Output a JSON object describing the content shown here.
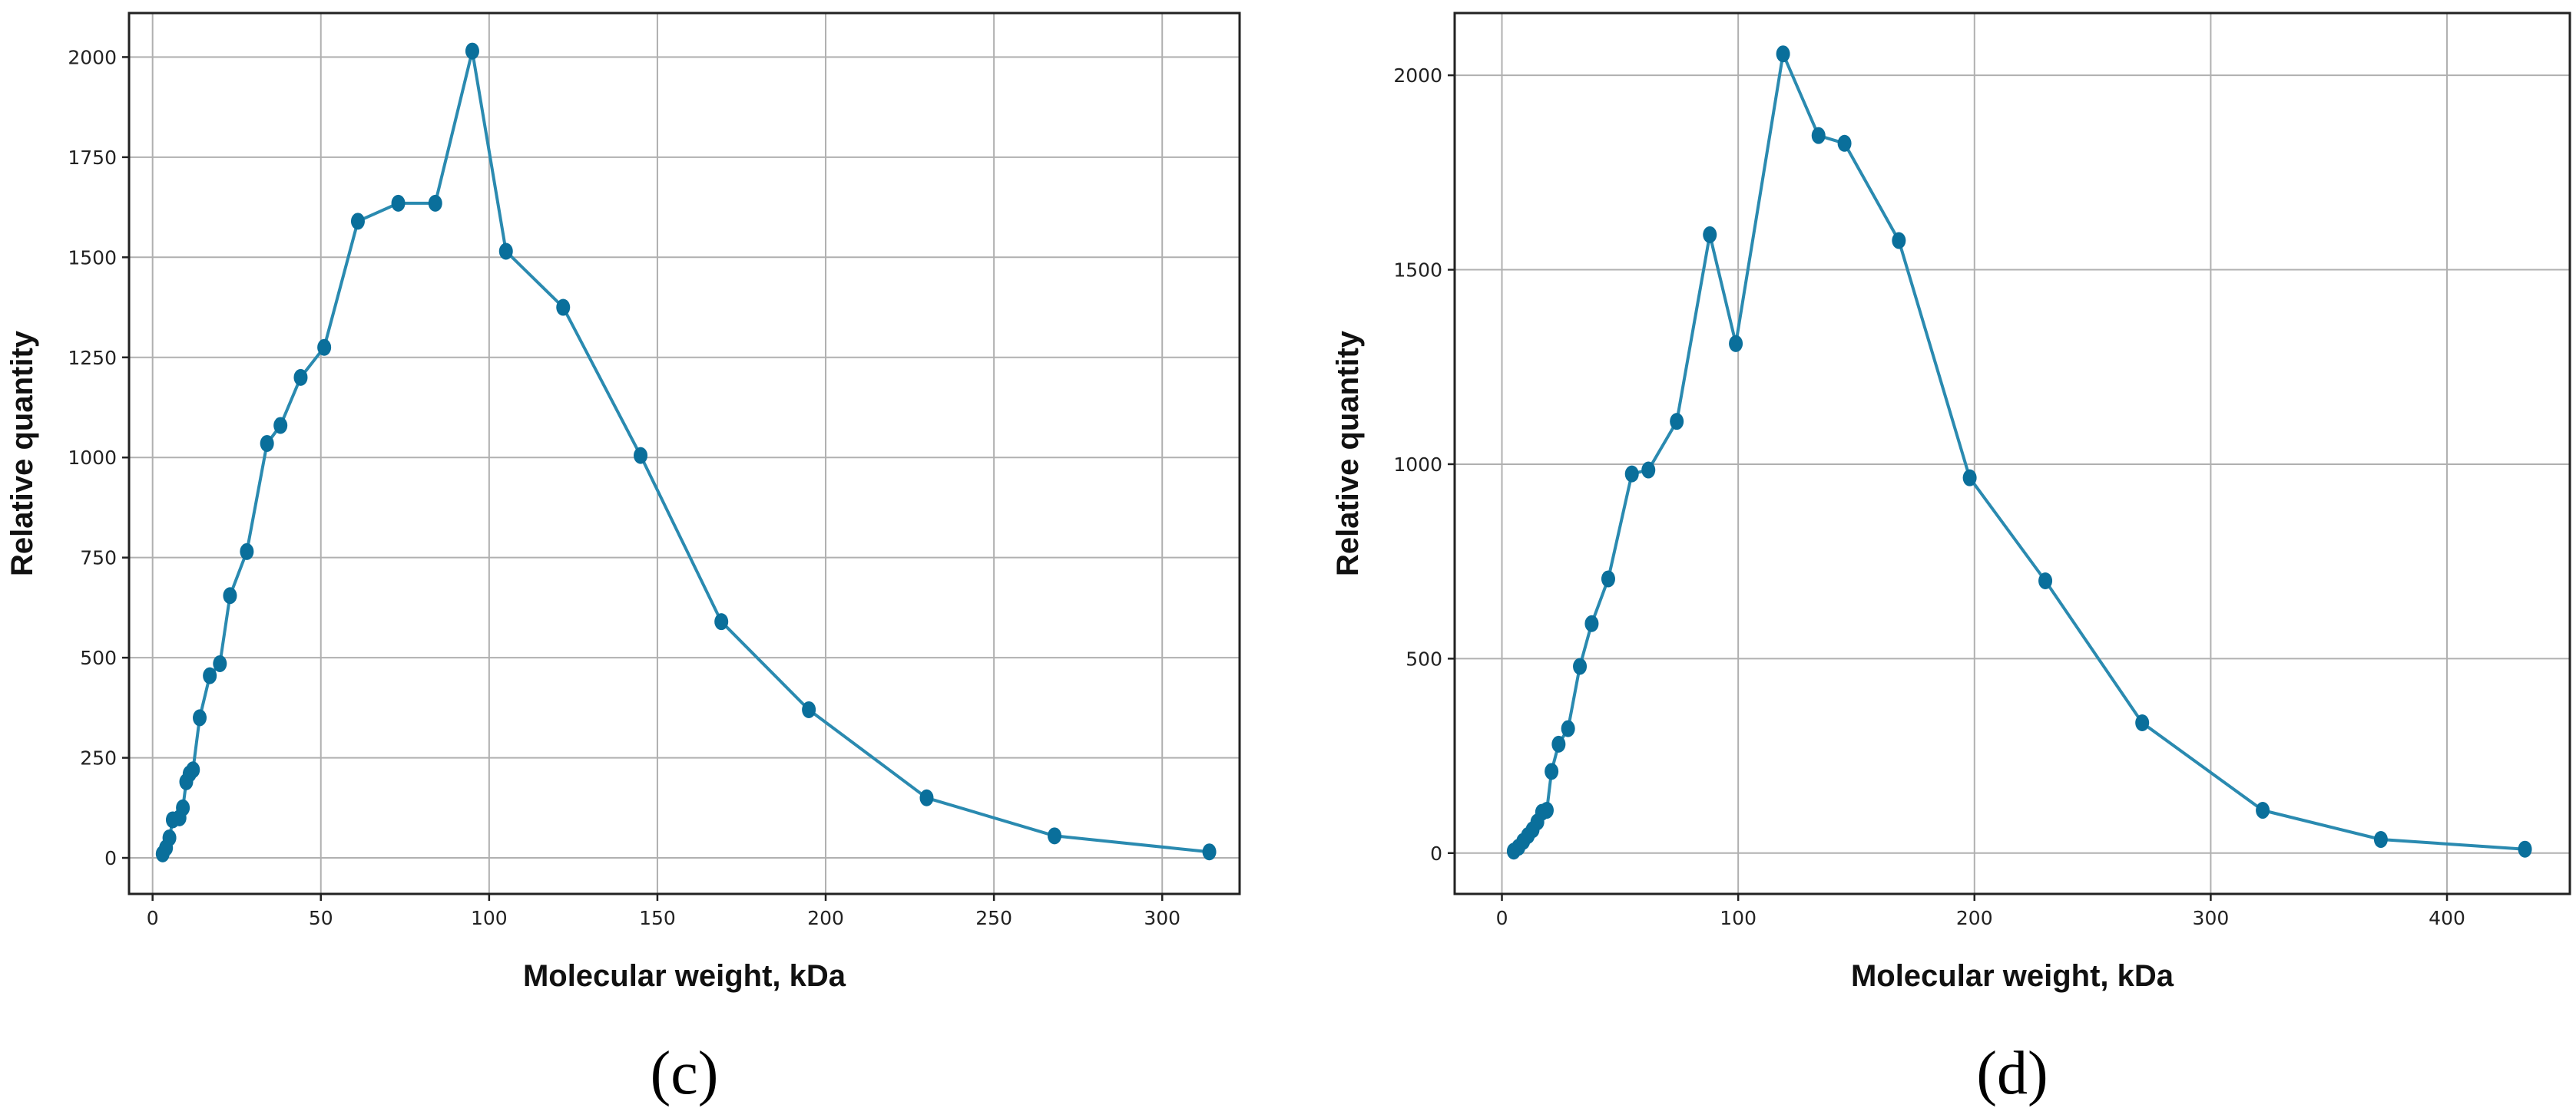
{
  "colors": {
    "series": "#2a8ab0",
    "marker": "#0a6f9b"
  },
  "chart_data": [
    {
      "type": "line",
      "panel_label": "(c)",
      "xlabel": "Molecular weight, kDa",
      "ylabel": "Relative quantity",
      "xlim": [
        -7,
        323
      ],
      "ylim": [
        -90,
        2110
      ],
      "xticks": [
        0,
        50,
        100,
        150,
        200,
        250,
        300
      ],
      "yticks": [
        0,
        250,
        500,
        750,
        1000,
        1250,
        1500,
        1750,
        2000
      ],
      "grid": true,
      "series": [
        {
          "x": [
            3,
            4,
            5,
            6,
            8,
            9,
            10,
            11,
            12,
            14,
            17,
            20,
            23,
            28,
            34,
            38,
            44,
            51,
            61,
            73,
            84,
            95,
            105,
            122,
            145,
            169,
            195,
            230,
            268,
            314
          ],
          "y": [
            10,
            25,
            50,
            95,
            100,
            125,
            190,
            210,
            220,
            350,
            455,
            485,
            655,
            765,
            1035,
            1080,
            1200,
            1275,
            1590,
            1635,
            1635,
            2015,
            1515,
            1375,
            1005,
            590,
            370,
            150,
            55,
            15
          ]
        }
      ]
    },
    {
      "type": "line",
      "panel_label": "(d)",
      "xlabel": "Molecular weight, kDa",
      "ylabel": "Relative quantity",
      "xlim": [
        -20,
        452
      ],
      "ylim": [
        -105,
        2160
      ],
      "xticks": [
        0,
        100,
        200,
        300,
        400
      ],
      "yticks": [
        0,
        500,
        1000,
        1500,
        2000
      ],
      "grid": true,
      "series": [
        {
          "x": [
            5,
            7,
            9,
            11,
            13,
            15,
            17,
            19,
            21,
            24,
            28,
            33,
            38,
            45,
            55,
            62,
            74,
            88,
            99,
            119,
            134,
            145,
            168,
            198,
            230,
            271,
            322,
            372,
            433
          ],
          "y": [
            5,
            15,
            30,
            45,
            60,
            80,
            105,
            110,
            210,
            280,
            320,
            480,
            590,
            705,
            975,
            985,
            1110,
            1590,
            1310,
            2055,
            1845,
            1825,
            1575,
            965,
            700,
            335,
            110,
            35,
            10
          ]
        }
      ]
    }
  ]
}
